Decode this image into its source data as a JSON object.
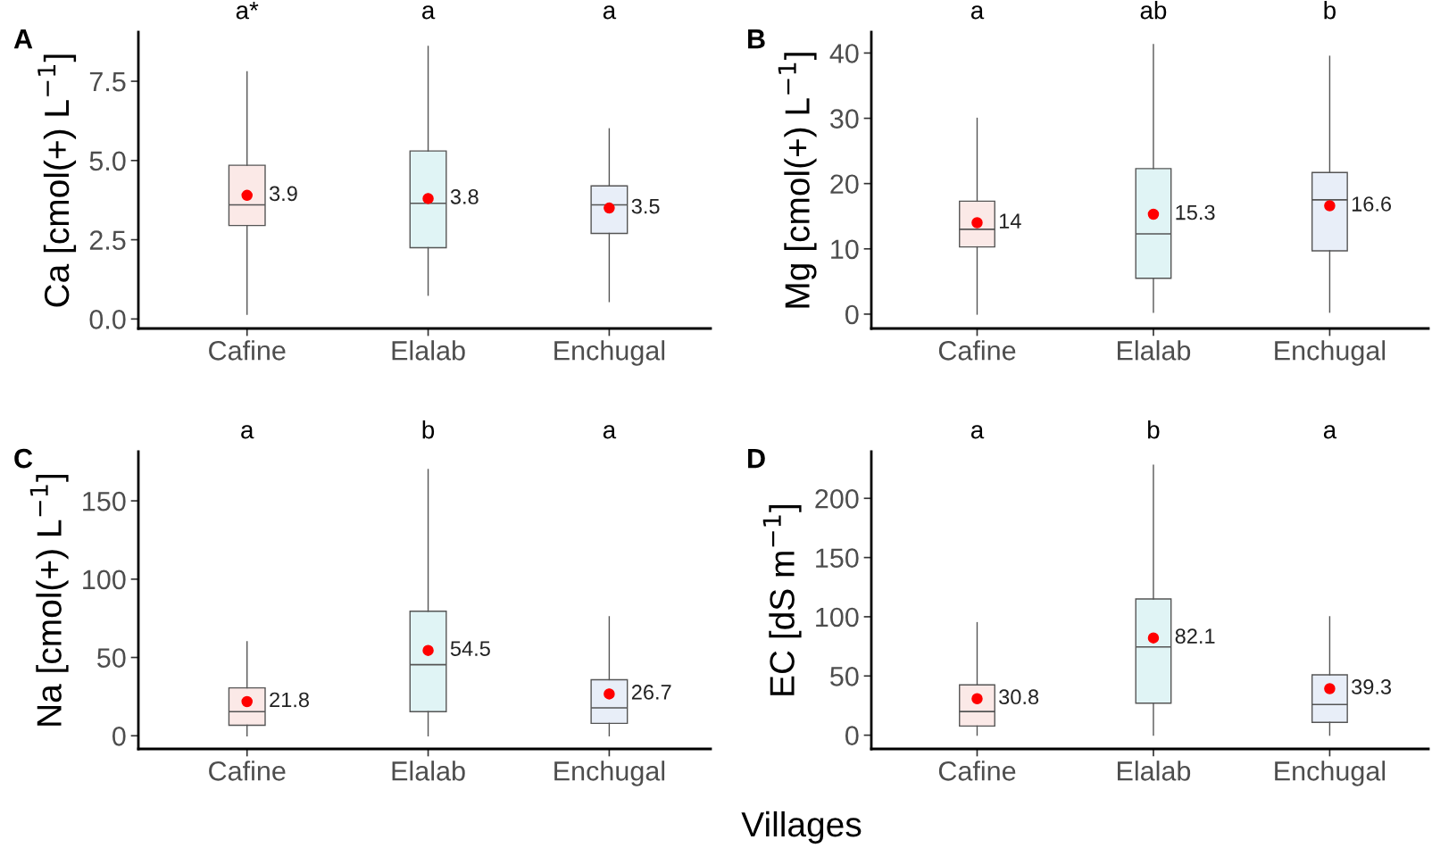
{
  "chart_data": [
    {
      "type": "box",
      "title": "A",
      "ylabel": "Ca [cmol(+) L$^{−1}$]",
      "categories": [
        "Cafine",
        "Elalab",
        "Enchugal"
      ],
      "colors": [
        "#fbe9e7",
        "#e0f4f5",
        "#e8eef8"
      ],
      "boxes": [
        {
          "low": 0.15,
          "q1": 2.95,
          "median": 3.6,
          "q3": 4.85,
          "high": 7.8,
          "mean": 3.9
        },
        {
          "low": 0.75,
          "q1": 2.25,
          "median": 3.65,
          "q3": 5.3,
          "high": 8.6,
          "mean": 3.8
        },
        {
          "low": 0.55,
          "q1": 2.7,
          "median": 3.6,
          "q3": 4.2,
          "high": 6.0,
          "mean": 3.5
        }
      ],
      "ylim": [
        -0.3,
        9.05
      ],
      "yticks": [
        {
          "value": 0,
          "label": "0.0"
        },
        2.5,
        {
          "value": 5,
          "label": "5.0"
        },
        7.5
      ],
      "annotations": [
        "a*",
        "a",
        "a",
        "3.9",
        "3.8",
        "3.5"
      ]
    },
    {
      "type": "box",
      "title": "B",
      "ylabel": "Mg [cmol(+) L$^{−1}$]",
      "categories": [
        "Cafine",
        "Elalab",
        "Enchugal"
      ],
      "colors": [
        "#fbe9e7",
        "#e0f4f5",
        "#e8eef8"
      ],
      "boxes": [
        {
          "low": 0,
          "q1": 10.3,
          "median": 13.0,
          "q3": 17.3,
          "high": 30,
          "mean": 14
        },
        {
          "low": 0.3,
          "q1": 5.5,
          "median": 12.3,
          "q3": 22.3,
          "high": 41.3,
          "mean": 15.3
        },
        {
          "low": 0.3,
          "q1": 9.7,
          "median": 17.5,
          "q3": 21.7,
          "high": 39.5,
          "mean": 16.6
        }
      ],
      "ylim": [
        -2.2,
        43.2
      ],
      "yticks": [
        0,
        10,
        20,
        30,
        40
      ],
      "annotations": [
        "a",
        "ab",
        "b",
        "14",
        "15.3",
        "16.6"
      ]
    },
    {
      "type": "box",
      "title": "C",
      "ylabel": "Na [cmol(+) L$^{−1}$]",
      "xlabel": "Villages",
      "categories": [
        "Cafine",
        "Elalab",
        "Enchugal"
      ],
      "colors": [
        "#fbe9e7",
        "#e0f4f5",
        "#e8eef8"
      ],
      "boxes": [
        {
          "low": 0,
          "q1": 6.7,
          "median": 15.4,
          "q3": 30.6,
          "high": 60,
          "mean": 21.8
        },
        {
          "low": 0,
          "q1": 15.4,
          "median": 45.4,
          "q3": 79.5,
          "high": 170,
          "mean": 54.5
        },
        {
          "low": 0,
          "q1": 7.9,
          "median": 17.8,
          "q3": 35.8,
          "high": 76,
          "mean": 26.7
        }
      ],
      "ylim": [
        -8.4,
        181.4
      ],
      "yticks": [
        0,
        50,
        100,
        150
      ],
      "annotations": [
        "a",
        "b",
        "a",
        "21.8",
        "54.5",
        "26.7"
      ]
    },
    {
      "type": "box",
      "title": "D",
      "ylabel": "EC [dS m$^{−1}$]",
      "categories": [
        "Cafine",
        "Elalab",
        "Enchugal"
      ],
      "colors": [
        "#fbe9e7",
        "#e0f4f5",
        "#e8eef8"
      ],
      "boxes": [
        {
          "low": 0,
          "q1": 7.7,
          "median": 20,
          "q3": 42.5,
          "high": 95,
          "mean": 30.8
        },
        {
          "low": 0,
          "q1": 27,
          "median": 74.5,
          "q3": 115,
          "high": 228,
          "mean": 82.1
        },
        {
          "low": 0,
          "q1": 10.8,
          "median": 25.9,
          "q3": 51,
          "high": 100,
          "mean": 39.3
        }
      ],
      "ylim": [
        -11.6,
        239.4
      ],
      "yticks": [
        0,
        50,
        100,
        150,
        200
      ],
      "annotations": [
        "a",
        "b",
        "a",
        "30.8",
        "82.1",
        "39.3"
      ]
    }
  ]
}
